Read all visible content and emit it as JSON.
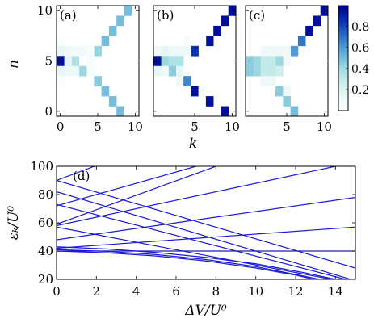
{
  "chart_data": [
    {
      "type": "heatmap",
      "panel_label": "(a)",
      "xlabel": "",
      "ylabel": "n",
      "xlim": [
        0,
        10
      ],
      "ylim": [
        0,
        10
      ],
      "xticks": [
        "0",
        "5",
        "10"
      ],
      "yticks": [
        "0",
        "5",
        "10"
      ],
      "cells": [
        {
          "k": 9,
          "n": 10,
          "v": 0.5
        },
        {
          "k": 8,
          "n": 9,
          "v": 0.5
        },
        {
          "k": 7,
          "n": 8,
          "v": 0.5
        },
        {
          "k": 6,
          "n": 7,
          "v": 0.5
        },
        {
          "k": 5,
          "n": 6,
          "v": 0.42
        },
        {
          "k": 4,
          "n": 6,
          "v": 0.05
        },
        {
          "k": 4,
          "n": 5,
          "v": 0.05
        },
        {
          "k": 4,
          "n": 4,
          "v": 0.05
        },
        {
          "k": 3,
          "n": 6,
          "v": 0.08
        },
        {
          "k": 3,
          "n": 4,
          "v": 0.4
        },
        {
          "k": 2,
          "n": 6,
          "v": 0.08
        },
        {
          "k": 2,
          "n": 5,
          "v": 0.35
        },
        {
          "k": 2,
          "n": 4,
          "v": 0.1
        },
        {
          "k": 1,
          "n": 6,
          "v": 0.1
        },
        {
          "k": 1,
          "n": 5,
          "v": 0.15
        },
        {
          "k": 1,
          "n": 4,
          "v": 0.1
        },
        {
          "k": 0,
          "n": 6,
          "v": 0.15
        },
        {
          "k": 0,
          "n": 5,
          "v": 0.95
        },
        {
          "k": 0,
          "n": 4,
          "v": 0.15
        },
        {
          "k": 5,
          "n": 3,
          "v": 0.45
        },
        {
          "k": 6,
          "n": 2,
          "v": 0.5
        },
        {
          "k": 7,
          "n": 1,
          "v": 0.5
        },
        {
          "k": 8,
          "n": 0,
          "v": 0.5
        },
        {
          "k": 0,
          "n": 7,
          "v": 0.05
        },
        {
          "k": 0,
          "n": 3,
          "v": 0.05
        }
      ]
    },
    {
      "type": "heatmap",
      "panel_label": "(b)",
      "xlabel": "k",
      "xlim": [
        0,
        10
      ],
      "ylim": [
        0,
        10
      ],
      "xticks": [
        "5",
        "10"
      ],
      "yticks": [],
      "cells": [
        {
          "k": 10,
          "n": 10,
          "v": 0.95
        },
        {
          "k": 9,
          "n": 9,
          "v": 0.95
        },
        {
          "k": 8,
          "n": 8,
          "v": 0.95
        },
        {
          "k": 7,
          "n": 7,
          "v": 0.95
        },
        {
          "k": 6,
          "n": 7,
          "v": 0.05
        },
        {
          "k": 5,
          "n": 6,
          "v": 0.85
        },
        {
          "k": 4,
          "n": 6,
          "v": 0.1
        },
        {
          "k": 4,
          "n": 7,
          "v": 0.05
        },
        {
          "k": 3,
          "n": 6,
          "v": 0.12
        },
        {
          "k": 3,
          "n": 5,
          "v": 0.35
        },
        {
          "k": 3,
          "n": 4,
          "v": 0.15
        },
        {
          "k": 2,
          "n": 6,
          "v": 0.12
        },
        {
          "k": 2,
          "n": 5,
          "v": 0.35
        },
        {
          "k": 2,
          "n": 4,
          "v": 0.45
        },
        {
          "k": 1,
          "n": 6,
          "v": 0.15
        },
        {
          "k": 1,
          "n": 5,
          "v": 0.4
        },
        {
          "k": 1,
          "n": 4,
          "v": 0.1
        },
        {
          "k": 0,
          "n": 6,
          "v": 0.1
        },
        {
          "k": 0,
          "n": 5,
          "v": 0.95
        },
        {
          "k": 0,
          "n": 4,
          "v": 0.15
        },
        {
          "k": 3,
          "n": 3,
          "v": 0.1
        },
        {
          "k": 4,
          "n": 3,
          "v": 0.65
        },
        {
          "k": 5,
          "n": 2,
          "v": 0.95
        },
        {
          "k": 6,
          "n": 2,
          "v": 0.05
        },
        {
          "k": 7,
          "n": 1,
          "v": 0.95
        },
        {
          "k": 9,
          "n": 0,
          "v": 0.95
        }
      ]
    },
    {
      "type": "heatmap",
      "panel_label": "(c)",
      "xlabel": "",
      "xlim": [
        0,
        10
      ],
      "ylim": [
        0,
        10
      ],
      "xticks": [
        "5",
        "10"
      ],
      "yticks": [],
      "cells": [
        {
          "k": 10,
          "n": 10,
          "v": 0.95
        },
        {
          "k": 9,
          "n": 9,
          "v": 0.95
        },
        {
          "k": 8,
          "n": 8,
          "v": 0.95
        },
        {
          "k": 7,
          "n": 7,
          "v": 0.7
        },
        {
          "k": 6,
          "n": 6,
          "v": 0.6
        },
        {
          "k": 5,
          "n": 6,
          "v": 0.1
        },
        {
          "k": 5,
          "n": 5,
          "v": 0.1
        },
        {
          "k": 4,
          "n": 6,
          "v": 0.1
        },
        {
          "k": 4,
          "n": 5,
          "v": 0.4
        },
        {
          "k": 4,
          "n": 4,
          "v": 0.25
        },
        {
          "k": 3,
          "n": 6,
          "v": 0.1
        },
        {
          "k": 3,
          "n": 5,
          "v": 0.3
        },
        {
          "k": 3,
          "n": 4,
          "v": 0.3
        },
        {
          "k": 3,
          "n": 3,
          "v": 0.1
        },
        {
          "k": 2,
          "n": 6,
          "v": 0.1
        },
        {
          "k": 2,
          "n": 5,
          "v": 0.3
        },
        {
          "k": 2,
          "n": 4,
          "v": 0.3
        },
        {
          "k": 2,
          "n": 3,
          "v": 0.1
        },
        {
          "k": 1,
          "n": 5,
          "v": 0.4
        },
        {
          "k": 1,
          "n": 4,
          "v": 0.4
        },
        {
          "k": 0,
          "n": 5,
          "v": 0.45
        },
        {
          "k": 0,
          "n": 4,
          "v": 0.45
        },
        {
          "k": 4,
          "n": 2,
          "v": 0.45
        },
        {
          "k": 5,
          "n": 2,
          "v": 0.1
        },
        {
          "k": 5,
          "n": 1,
          "v": 0.45
        },
        {
          "k": 6,
          "n": 0,
          "v": 0.5
        }
      ]
    },
    {
      "type": "colorbar",
      "range": [
        0,
        1
      ],
      "ticks": [
        "0.2",
        "0.4",
        "0.6",
        "0.8"
      ],
      "colormap": [
        "#ffffff",
        "#e8f7f8",
        "#c6ecea",
        "#93d3df",
        "#5aa7d6",
        "#2c6dc4",
        "#0b2fb3",
        "#00008c"
      ]
    },
    {
      "type": "line",
      "panel_label": "(d)",
      "xlabel": "ΔV/U⁰",
      "ylabel": "εₖ/U⁰",
      "xlim": [
        0,
        15
      ],
      "ylim": [
        20,
        100
      ],
      "xticks": [
        "0",
        "2",
        "4",
        "6",
        "8",
        "10",
        "12",
        "14"
      ],
      "yticks": [
        "20",
        "40",
        "60",
        "80",
        "100"
      ],
      "line_color": "#1a1ad2",
      "series": [
        {
          "x": [
            0,
            1.9
          ],
          "y": [
            90,
            100
          ]
        },
        {
          "x": [
            0,
            7
          ],
          "y": [
            72,
            100
          ]
        },
        {
          "x": [
            0,
            14
          ],
          "y": [
            58,
            100
          ]
        },
        {
          "x": [
            0,
            15
          ],
          "y": [
            48,
            78
          ]
        },
        {
          "x": [
            0,
            15
          ],
          "y": [
            42,
            57
          ]
        },
        {
          "x": [
            0,
            15
          ],
          "y": [
            40,
            40
          ]
        },
        {
          "x": [
            0,
            8
          ],
          "y": [
            59,
            100
          ]
        },
        {
          "x": [
            0,
            15
          ],
          "y": [
            90,
            28
          ]
        },
        {
          "x": [
            0,
            15
          ],
          "y": [
            82,
            19
          ]
        },
        {
          "x": [
            0,
            14.5
          ],
          "y": [
            73,
            20
          ]
        },
        {
          "x": [
            0,
            13.8
          ],
          "y": [
            57,
            20
          ]
        },
        {
          "x": [
            0,
            2.5,
            5,
            7.5,
            10,
            12.5,
            14
          ],
          "y": [
            43,
            41.5,
            39,
            35.5,
            31,
            24.5,
            20
          ]
        },
        {
          "x": [
            0,
            2.5,
            5,
            7.5,
            10,
            12.5,
            13.2
          ],
          "y": [
            41,
            39.8,
            37.5,
            34,
            29,
            22,
            20
          ]
        },
        {
          "x": [
            0,
            2.5,
            5,
            7.5,
            10,
            12,
            12.9
          ],
          "y": [
            40,
            38.8,
            36.5,
            33,
            28,
            23,
            20
          ]
        }
      ]
    }
  ]
}
